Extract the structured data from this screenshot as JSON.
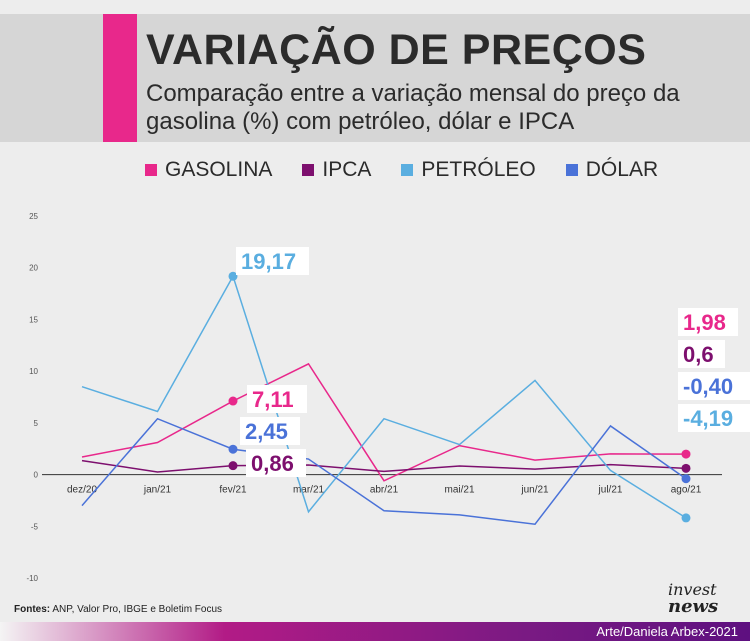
{
  "header": {
    "title": "VARIAÇÃO DE PREÇOS",
    "subtitle": "Comparação entre a variação mensal do preço da gasolina (%) com petróleo, dólar e IPCA"
  },
  "legend": [
    {
      "label": "GASOLINA",
      "color": "#e8288b"
    },
    {
      "label": "IPCA",
      "color": "#7d0f6e"
    },
    {
      "label": "PETRÓLEO",
      "color": "#5aaee0"
    },
    {
      "label": "DÓLAR",
      "color": "#4a72d8"
    }
  ],
  "chart_data": {
    "type": "line",
    "categories": [
      "dez/20",
      "jan/21",
      "fev/21",
      "mar/21",
      "abr/21",
      "mai/21",
      "jun/21",
      "jul/21",
      "ago/21"
    ],
    "y_ticks": [
      "25",
      "20",
      "15",
      "10",
      "5",
      "0",
      "-5",
      "-10"
    ],
    "ylim": [
      -10,
      25
    ],
    "grid": false,
    "series": [
      {
        "name": "GASOLINA",
        "color": "#e8288b",
        "values": [
          1.7,
          3.1,
          7.11,
          10.7,
          -0.6,
          2.8,
          1.4,
          2.0,
          1.98
        ]
      },
      {
        "name": "IPCA",
        "color": "#7d0f6e",
        "values": [
          1.35,
          0.25,
          0.86,
          0.93,
          0.31,
          0.83,
          0.53,
          0.96,
          0.6
        ]
      },
      {
        "name": "PETRÓLEO",
        "color": "#5aaee0",
        "values": [
          8.5,
          6.1,
          19.17,
          -3.6,
          5.4,
          2.9,
          9.1,
          0.4,
          -4.19
        ]
      },
      {
        "name": "DÓLAR",
        "color": "#4a72d8",
        "values": [
          -3.0,
          5.4,
          2.45,
          1.5,
          -3.5,
          -3.9,
          -4.8,
          4.7,
          -0.4
        ]
      }
    ],
    "annotations": [
      {
        "text": "19,17",
        "series": "PETRÓLEO",
        "category": "fev/21"
      },
      {
        "text": "7,11",
        "series": "GASOLINA",
        "category": "fev/21"
      },
      {
        "text": "2,45",
        "series": "DÓLAR",
        "category": "fev/21"
      },
      {
        "text": "0,86",
        "series": "IPCA",
        "category": "fev/21"
      },
      {
        "text": "1,98",
        "series": "GASOLINA",
        "category": "ago/21"
      },
      {
        "text": "0,6",
        "series": "IPCA",
        "category": "ago/21"
      },
      {
        "text": "-0,40",
        "series": "DÓLAR",
        "category": "ago/21"
      },
      {
        "text": "-4,19",
        "series": "PETRÓLEO",
        "category": "ago/21"
      }
    ]
  },
  "footer": {
    "source_label": "Fontes:",
    "source_text": " ANP, Valor Pro, IBGE e Boletim Focus",
    "logo_top": "invest",
    "logo_bottom": "news",
    "credit": "Arte/Daniela Arbex-2021"
  }
}
